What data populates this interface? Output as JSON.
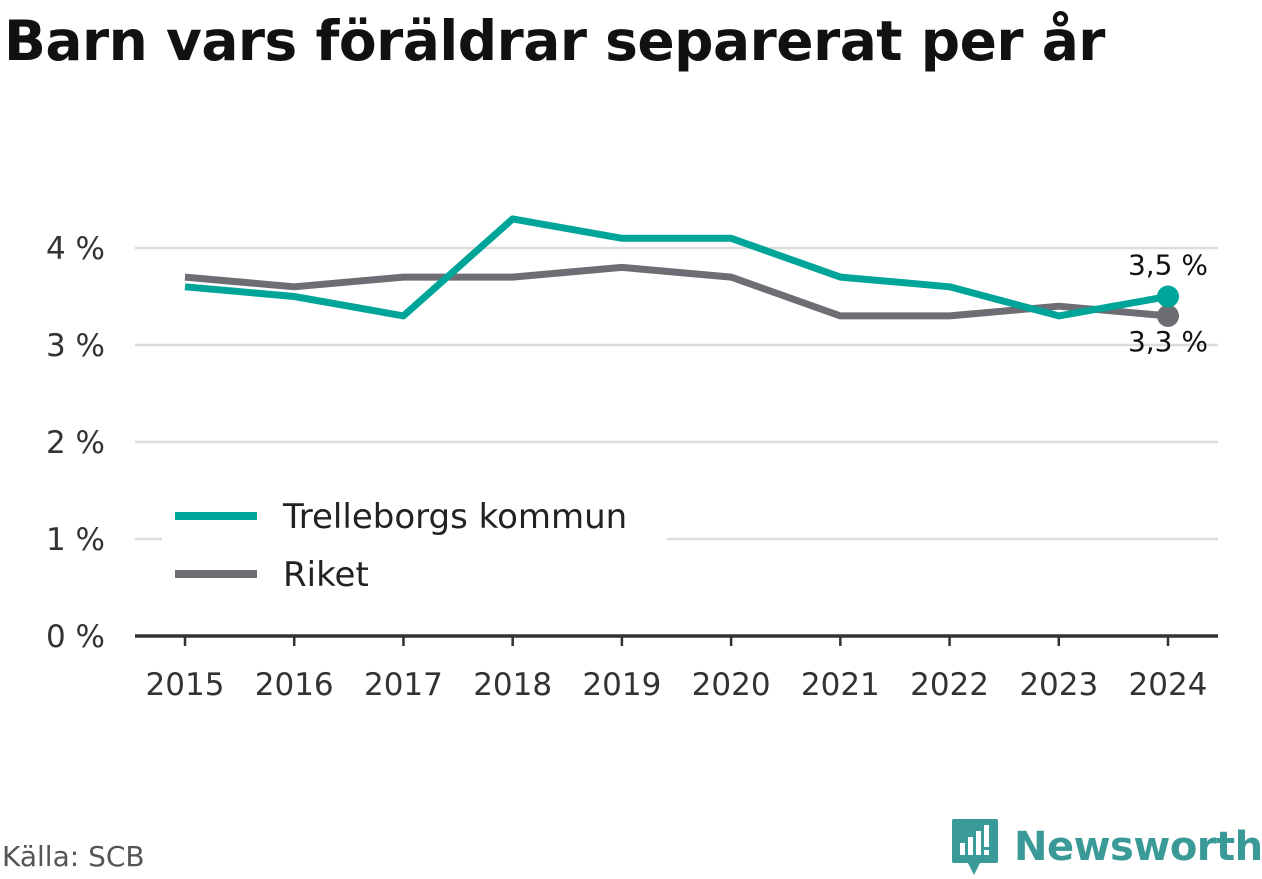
{
  "title": "Barn vars föräldrar separerat per år",
  "source": "Källa: SCB",
  "brand": "Newsworthy",
  "colors": {
    "trelleborg": "#00a59a",
    "riket": "#6e6d74",
    "grid": "#dcdcdc",
    "axis": "#333333"
  },
  "chart_data": {
    "type": "line",
    "x": [
      "2015",
      "2016",
      "2017",
      "2018",
      "2019",
      "2020",
      "2021",
      "2022",
      "2023",
      "2024"
    ],
    "series": [
      {
        "name": "Trelleborgs kommun",
        "values": [
          3.6,
          3.5,
          3.3,
          4.3,
          4.1,
          4.1,
          3.7,
          3.6,
          3.3,
          3.5
        ],
        "color": "#00a59a",
        "end_label": "3,5 %"
      },
      {
        "name": "Riket",
        "values": [
          3.7,
          3.6,
          3.7,
          3.7,
          3.8,
          3.7,
          3.3,
          3.3,
          3.4,
          3.3
        ],
        "color": "#6e6d74",
        "end_label": "3,3 %"
      }
    ],
    "y_ticks": [
      {
        "value": 0,
        "label": "0 %"
      },
      {
        "value": 1,
        "label": "1 %"
      },
      {
        "value": 2,
        "label": "2 %"
      },
      {
        "value": 3,
        "label": "3 %"
      },
      {
        "value": 4,
        "label": "4 %"
      }
    ],
    "ylim": [
      0,
      4.3
    ],
    "grid": true,
    "legend_position": "lower-left"
  }
}
